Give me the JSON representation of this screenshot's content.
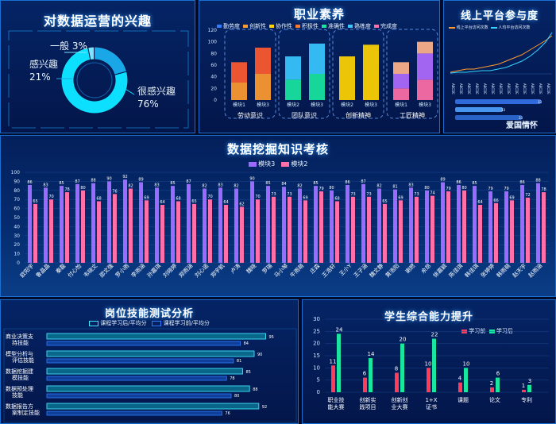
{
  "interest": {
    "title": "对数据运营的兴趣",
    "segments": [
      {
        "label": "一般",
        "percent": 3,
        "color": "#7fe3ff"
      },
      {
        "label": "感兴趣",
        "percent": 21,
        "color": "#19a7e8"
      },
      {
        "label": "很感兴趣",
        "percent": 76,
        "color": "#0de0ff"
      }
    ]
  },
  "literacy": {
    "title": "职业素养",
    "legend": [
      "勤劳度",
      "创新性",
      "协作性",
      "积极性",
      "准确性",
      "熟练度",
      "完成度"
    ],
    "ylim": [
      0,
      120
    ],
    "yticks": [
      "120",
      "100",
      "80",
      "60",
      "40",
      "20",
      "0"
    ],
    "groups": [
      {
        "name": "劳动意识",
        "bars": [
          {
            "label": "模块1",
            "values": [
              30,
              35
            ]
          },
          {
            "label": "模块3",
            "values": [
              45,
              45
            ]
          }
        ]
      },
      {
        "name": "团队意识",
        "bars": [
          {
            "label": "模块2",
            "values": [
              35,
              40
            ]
          },
          {
            "label": "模块3",
            "values": [
              45,
              52
            ]
          }
        ]
      },
      {
        "name": "创新精神",
        "bars": [
          {
            "label": "模块2",
            "values": [
              75
            ]
          },
          {
            "label": "模块3",
            "values": [
              95
            ]
          }
        ]
      },
      {
        "name": "工匠精神",
        "bars": [
          {
            "label": "模块1",
            "values": [
              20,
              25,
              20
            ]
          },
          {
            "label": "模块3",
            "values": [
              35,
              45,
              20
            ]
          }
        ]
      }
    ]
  },
  "online": {
    "title": "线上平台参与度",
    "legend": [
      "线上平台访问次数",
      "人均平台访问次数"
    ],
    "progress_value": 33,
    "progress_label": "爱国情怀"
  },
  "mining": {
    "title": "数据挖掘知识考核",
    "legend": [
      "模块3",
      "模块2"
    ],
    "yticks": [
      "100",
      "90",
      "80",
      "70",
      "60",
      "50",
      "40",
      "30",
      "20",
      "10",
      "0"
    ],
    "ylim": [
      0,
      100
    ],
    "names": [
      "欧阳宇",
      "鲁晶晶",
      "秦磊",
      "付心怡",
      "韦晓文",
      "邵文强",
      "罗小雨",
      "李雨涵",
      "孙嘉琪",
      "刘晓婷",
      "郑雨涵",
      "刘心诺",
      "郑宇航",
      "卢涛",
      "魏晓",
      "罗瑞",
      "马小琴",
      "牛雨萌",
      "庄森",
      "王浩轩",
      "王小Y",
      "王子涵",
      "魏文静",
      "黄浩阳",
      "谢燃",
      "余昂",
      "徐嘉颖",
      "陈佳琪",
      "韩佳琪",
      "张婷婷",
      "韩雨萌",
      "赵天宇",
      "赵雨涵"
    ],
    "series": [
      {
        "name": "模块3",
        "values": [
          86,
          83,
          85,
          87,
          88,
          90,
          92,
          89,
          83,
          85,
          87,
          82,
          83,
          82,
          90,
          85,
          84,
          82,
          85,
          80,
          86,
          87,
          82,
          81,
          83,
          80,
          89,
          86,
          85,
          79,
          79,
          86,
          88
        ]
      },
      {
        "name": "模块2",
        "values": [
          65,
          70,
          78,
          80,
          68,
          76,
          82,
          69,
          64,
          68,
          65,
          70,
          64,
          62,
          70,
          73,
          73,
          69,
          79,
          68,
          73,
          73,
          65,
          69,
          73,
          74,
          79,
          80,
          64,
          66,
          69,
          72,
          78
        ]
      }
    ]
  },
  "skills": {
    "title": "岗位技能测试分析",
    "legend": [
      "课程学习后/平均分",
      "课程学习前/平均分"
    ],
    "rows": [
      {
        "label": "商业决策支持技能",
        "after": 95,
        "before": 84
      },
      {
        "label": "模型分析与评估技能",
        "after": 90,
        "before": 81
      },
      {
        "label": "数据挖掘建模技能",
        "after": 85,
        "before": 78
      },
      {
        "label": "数据预处理技能",
        "after": 88,
        "before": 80
      },
      {
        "label": "数据报告方案制定技能",
        "after": 92,
        "before": 76
      }
    ]
  },
  "ability": {
    "title": "学生综合能力提升",
    "legend": [
      "学习前",
      "学习后"
    ],
    "yticks": [
      "30",
      "25",
      "20",
      "15",
      "10",
      "5",
      "0"
    ],
    "ylim": [
      0,
      30
    ],
    "categories": [
      "职业技能大赛",
      "创新实践项目",
      "创新创业大赛",
      "1+X证书",
      "课题",
      "论文",
      "专利"
    ],
    "before": [
      11,
      6,
      8,
      10,
      4,
      2,
      1
    ],
    "after": [
      24,
      14,
      20,
      22,
      10,
      6,
      3
    ]
  }
}
